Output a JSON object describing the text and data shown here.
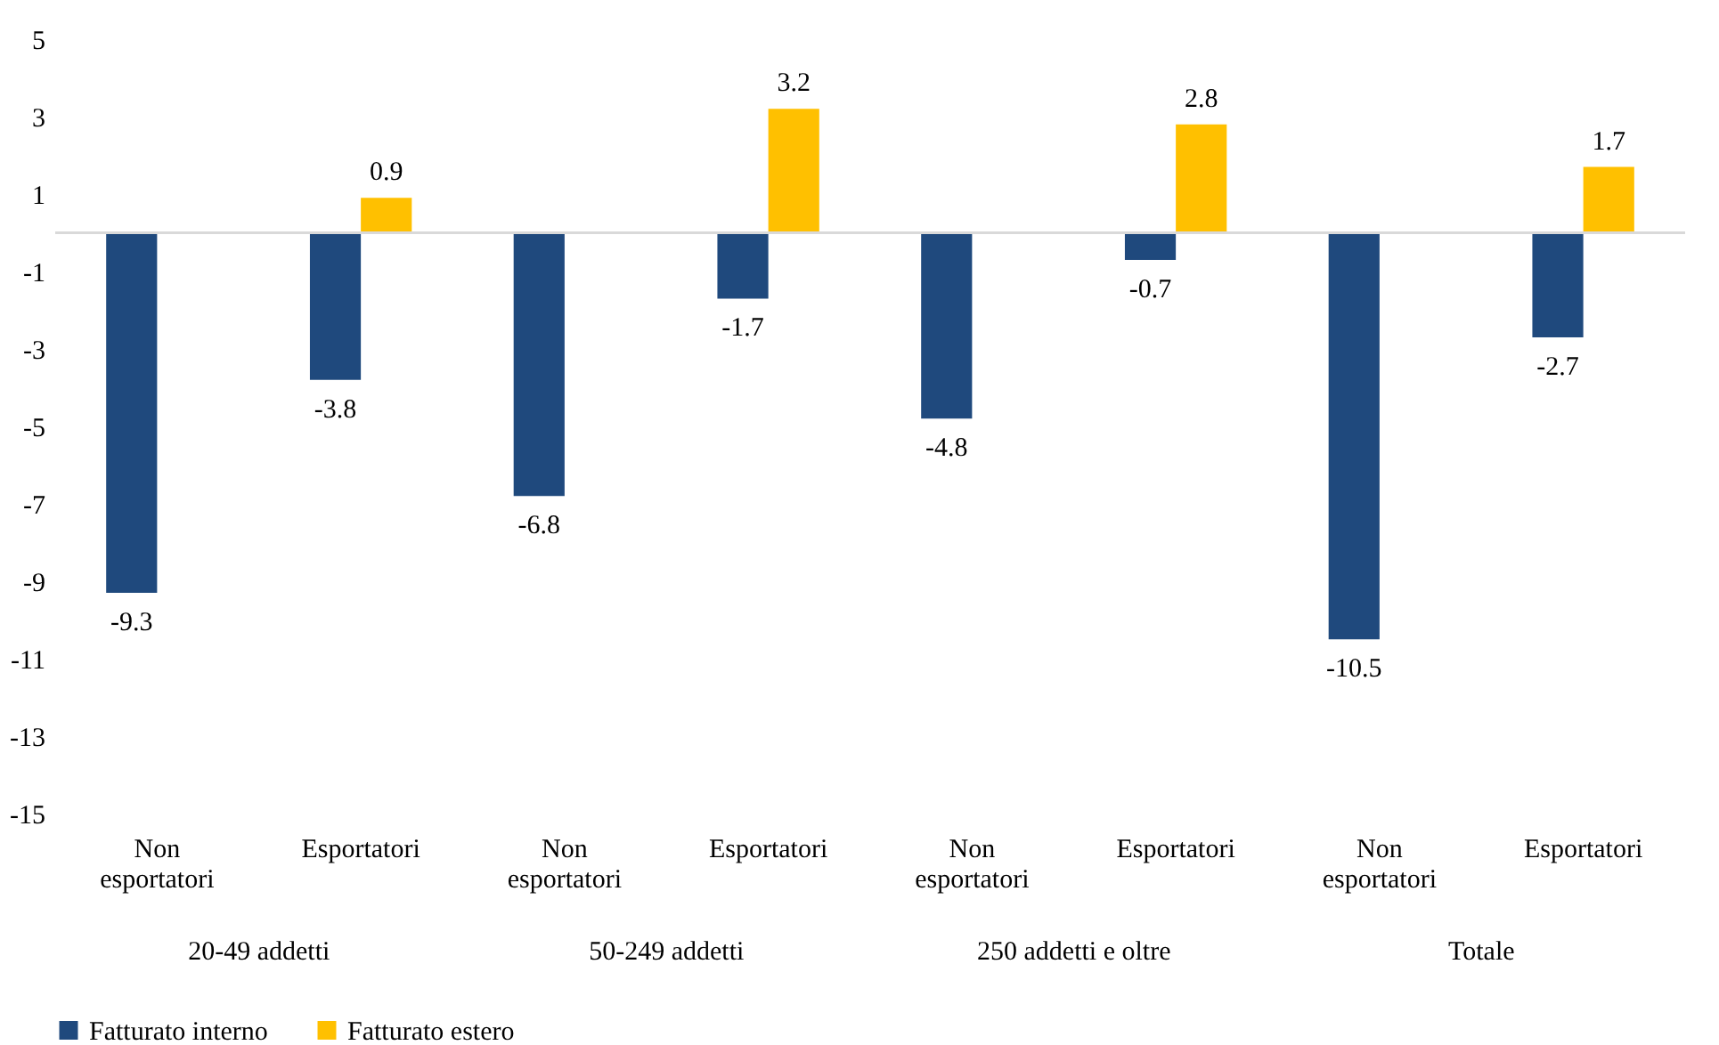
{
  "chart_data": {
    "type": "bar",
    "categories": [
      "Non esportatori",
      "Esportatori",
      "Non esportatori",
      "Esportatori",
      "Non esportatori",
      "Esportatori",
      "Non esportatori",
      "Esportatori"
    ],
    "series": [
      {
        "name": "Fatturato interno",
        "color": "#1f497d",
        "values": [
          -9.3,
          -3.8,
          -6.8,
          -1.7,
          -4.8,
          -0.7,
          -10.5,
          -2.7
        ]
      },
      {
        "name": "Fatturato estero",
        "color": "#ffc000",
        "values": [
          null,
          0.9,
          null,
          3.2,
          null,
          2.8,
          null,
          1.7
        ]
      }
    ],
    "annotations": [
      "20-49 addetti",
      "50-249 addetti",
      "250 addetti e oltre",
      "Totale"
    ],
    "ylim": [
      -15,
      5
    ],
    "yticks": [
      -15,
      -13,
      -11,
      -9,
      -7,
      -5,
      -3,
      -1,
      1,
      3,
      5
    ],
    "ref_lines": [
      {
        "axis": "y",
        "value": 0,
        "color": "#d9d9d9"
      }
    ],
    "data_labels": true,
    "grid": false,
    "legend": "bottom"
  }
}
